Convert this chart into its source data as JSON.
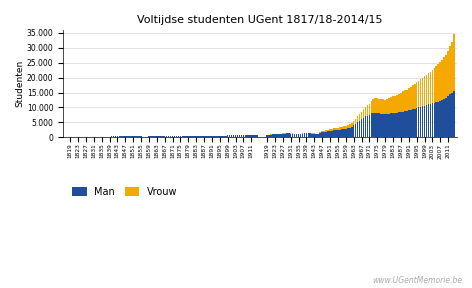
{
  "title": "Voltijdse studenten UGent 1817/18-2014/15",
  "ylabel": "Studenten",
  "watermark": "www.UGentMemorie.be",
  "man_color": "#1f4e9c",
  "vrouw_color": "#f5a800",
  "bg_color": "#ffffff",
  "ylim": [
    0,
    36000
  ],
  "yticks": [
    0,
    5000,
    10000,
    15000,
    20000,
    25000,
    30000,
    35000
  ],
  "years": [
    1817,
    1818,
    1819,
    1820,
    1821,
    1822,
    1823,
    1824,
    1825,
    1826,
    1827,
    1828,
    1829,
    1830,
    1831,
    1832,
    1833,
    1834,
    1835,
    1836,
    1837,
    1838,
    1839,
    1840,
    1841,
    1842,
    1843,
    1844,
    1845,
    1846,
    1847,
    1848,
    1849,
    1850,
    1851,
    1852,
    1853,
    1854,
    1855,
    1856,
    1857,
    1858,
    1859,
    1860,
    1861,
    1862,
    1863,
    1864,
    1865,
    1866,
    1867,
    1868,
    1869,
    1870,
    1871,
    1872,
    1873,
    1874,
    1875,
    1876,
    1877,
    1878,
    1879,
    1880,
    1881,
    1882,
    1883,
    1884,
    1885,
    1886,
    1887,
    1888,
    1889,
    1890,
    1891,
    1892,
    1893,
    1894,
    1895,
    1896,
    1897,
    1898,
    1899,
    1900,
    1901,
    1902,
    1903,
    1904,
    1905,
    1906,
    1907,
    1908,
    1909,
    1910,
    1911,
    1912,
    1913,
    1914,
    1919,
    1920,
    1921,
    1922,
    1923,
    1924,
    1925,
    1926,
    1927,
    1928,
    1929,
    1930,
    1931,
    1932,
    1933,
    1934,
    1935,
    1936,
    1937,
    1938,
    1939,
    1940,
    1941,
    1942,
    1943,
    1944,
    1945,
    1946,
    1947,
    1948,
    1949,
    1950,
    1951,
    1952,
    1953,
    1954,
    1955,
    1956,
    1957,
    1958,
    1959,
    1960,
    1961,
    1962,
    1963,
    1964,
    1965,
    1966,
    1967,
    1968,
    1969,
    1970,
    1971,
    1972,
    1973,
    1974,
    1975,
    1976,
    1977,
    1978,
    1979,
    1980,
    1981,
    1982,
    1983,
    1984,
    1985,
    1986,
    1987,
    1988,
    1989,
    1990,
    1991,
    1992,
    1993,
    1994,
    1995,
    1996,
    1997,
    1998,
    1999,
    2000,
    2001,
    2002,
    2003,
    2004,
    2005,
    2006,
    2007,
    2008,
    2009,
    2010,
    2011,
    2012,
    2013,
    2014
  ],
  "man": [
    120,
    130,
    125,
    140,
    150,
    145,
    160,
    155,
    170,
    165,
    180,
    175,
    190,
    185,
    195,
    200,
    205,
    210,
    220,
    230,
    240,
    250,
    260,
    270,
    280,
    290,
    300,
    310,
    320,
    330,
    340,
    350,
    330,
    320,
    310,
    300,
    290,
    280,
    270,
    260,
    250,
    260,
    270,
    280,
    290,
    300,
    310,
    320,
    330,
    340,
    350,
    360,
    370,
    380,
    370,
    360,
    350,
    360,
    370,
    380,
    390,
    400,
    410,
    420,
    430,
    440,
    450,
    460,
    470,
    480,
    490,
    500,
    510,
    520,
    530,
    540,
    550,
    560,
    570,
    580,
    590,
    600,
    610,
    620,
    630,
    640,
    650,
    660,
    670,
    680,
    690,
    700,
    710,
    720,
    730,
    740,
    750,
    760,
    800,
    850,
    900,
    950,
    1000,
    1050,
    1100,
    1150,
    1200,
    1250,
    1300,
    1350,
    1250,
    1200,
    1100,
    1050,
    1000,
    1100,
    1200,
    1300,
    1400,
    1350,
    1300,
    1250,
    1200,
    1100,
    1050,
    1600,
    1700,
    1800,
    1900,
    2000,
    2100,
    2200,
    2300,
    2400,
    2500,
    2600,
    2700,
    2800,
    2900,
    3000,
    3200,
    3500,
    4000,
    4500,
    5000,
    5500,
    6000,
    6500,
    7000,
    7200,
    7500,
    8000,
    8200,
    8300,
    8100,
    8000,
    7900,
    7800,
    7700,
    7800,
    7900,
    8000,
    8100,
    8200,
    8300,
    8400,
    8500,
    8600,
    8700,
    8800,
    9000,
    9200,
    9400,
    9600,
    9800,
    10000,
    10200,
    10400,
    10600,
    10800,
    11000,
    11200,
    11400,
    11600,
    11800,
    12000,
    12200,
    12500,
    12800,
    13200,
    13800,
    14500,
    15000,
    15500
  ],
  "vrouw": [
    0,
    0,
    0,
    0,
    0,
    0,
    0,
    0,
    0,
    0,
    0,
    0,
    0,
    0,
    0,
    0,
    0,
    0,
    0,
    0,
    0,
    0,
    0,
    0,
    0,
    0,
    0,
    0,
    0,
    0,
    0,
    0,
    0,
    0,
    0,
    0,
    0,
    0,
    0,
    0,
    0,
    0,
    0,
    0,
    0,
    0,
    0,
    0,
    0,
    0,
    0,
    0,
    0,
    0,
    0,
    0,
    0,
    0,
    0,
    0,
    0,
    0,
    0,
    0,
    0,
    0,
    0,
    0,
    0,
    0,
    0,
    0,
    0,
    0,
    0,
    0,
    0,
    0,
    0,
    0,
    0,
    0,
    0,
    0,
    0,
    0,
    0,
    0,
    0,
    0,
    0,
    0,
    0,
    10,
    20,
    30,
    50,
    70,
    40,
    50,
    60,
    70,
    80,
    90,
    100,
    110,
    120,
    130,
    140,
    150,
    100,
    90,
    80,
    70,
    60,
    100,
    130,
    160,
    200,
    180,
    170,
    160,
    150,
    140,
    130,
    300,
    350,
    400,
    450,
    500,
    550,
    600,
    650,
    700,
    750,
    800,
    850,
    900,
    950,
    1000,
    1100,
    1200,
    1400,
    1700,
    2000,
    2300,
    2600,
    2900,
    3200,
    3500,
    3800,
    4100,
    4500,
    4900,
    5000,
    5000,
    5100,
    5000,
    4900,
    5000,
    5200,
    5400,
    5600,
    5800,
    6000,
    6200,
    6500,
    6800,
    7000,
    7200,
    7500,
    7800,
    8100,
    8400,
    8700,
    9000,
    9300,
    9600,
    9900,
    10200,
    10500,
    10800,
    11200,
    11600,
    12000,
    12500,
    13000,
    13500,
    14000,
    14500,
    15200,
    16000,
    16800,
    19000
  ],
  "tick_years": [
    1819,
    1823,
    1827,
    1831,
    1835,
    1839,
    1843,
    1847,
    1851,
    1855,
    1859,
    1863,
    1867,
    1871,
    1875,
    1879,
    1883,
    1887,
    1891,
    1895,
    1899,
    1903,
    1907,
    1911,
    1919,
    1923,
    1927,
    1931,
    1935,
    1939,
    1943,
    1947,
    1951,
    1955,
    1959,
    1963,
    1967,
    1971,
    1975,
    1979,
    1983,
    1987,
    1991,
    1995,
    1999,
    2003,
    2007,
    2011
  ]
}
